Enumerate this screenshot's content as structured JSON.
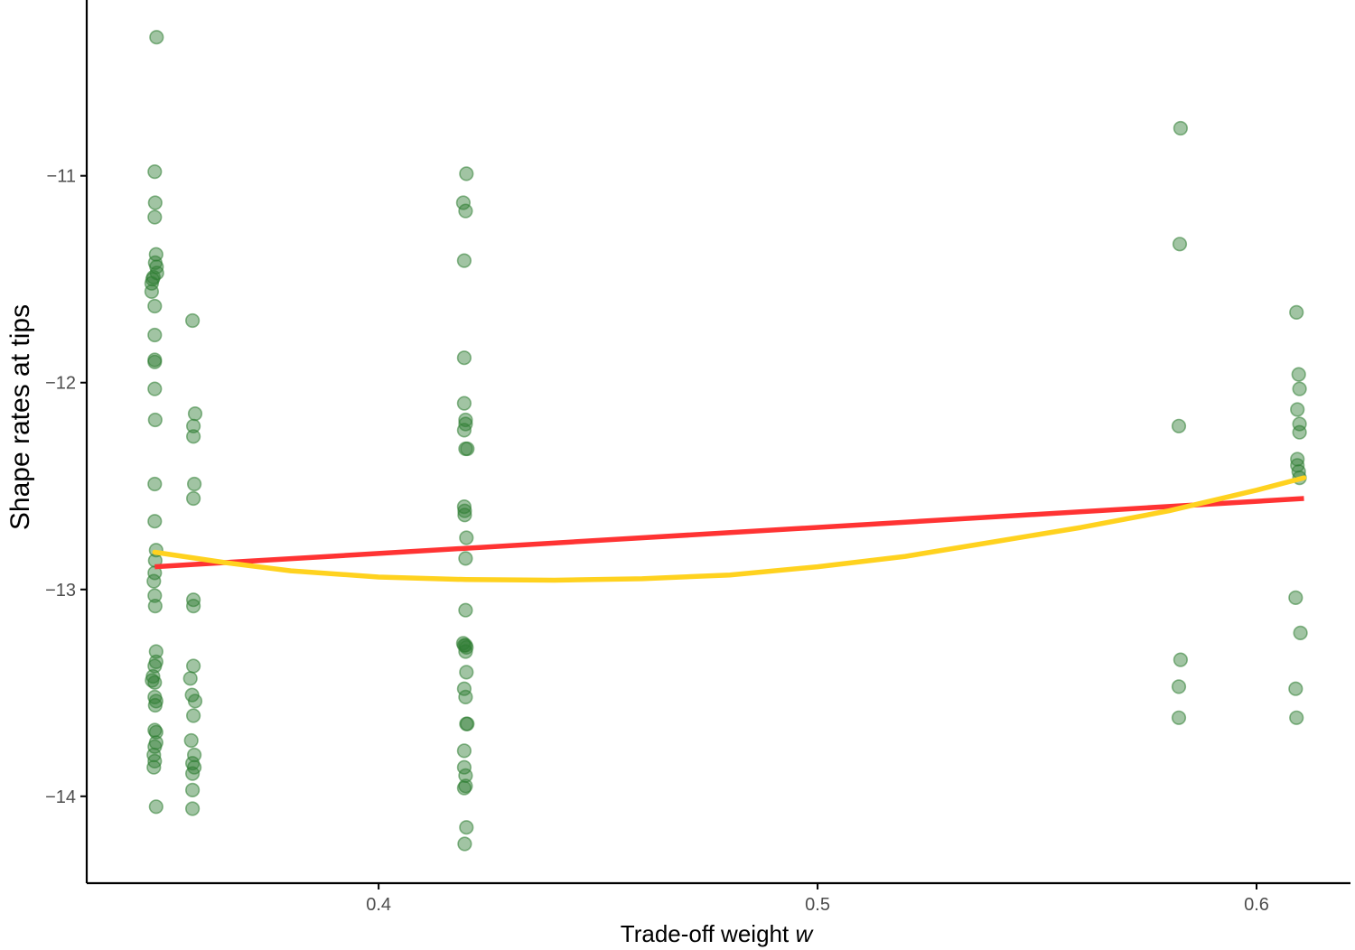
{
  "chart_data": {
    "type": "scatter",
    "title": "",
    "xlabel_main": "Trade-off weight ",
    "xlabel_var": "w",
    "ylabel": "Shape rates at tips",
    "xlim": [
      0.3335,
      0.6214
    ],
    "ylim": [
      -14.42,
      -10.15
    ],
    "x_ticks": [
      0.4,
      0.5,
      0.6
    ],
    "x_tick_labels": [
      "0.4",
      "0.5",
      "0.6"
    ],
    "y_ticks": [
      -11,
      -12,
      -13,
      -14
    ],
    "y_tick_labels": [
      "−11",
      "−12",
      "−13",
      "−14"
    ],
    "grid": false,
    "legend": "none",
    "colors": {
      "points": "#2e7d32",
      "linear_fit": "#ff3333",
      "smooth_fit": "#ffd21f",
      "axis": "#000000",
      "tick_text": "#4d4d4d"
    },
    "points": [
      [
        0.3494,
        -10.33
      ],
      [
        0.349,
        -10.98
      ],
      [
        0.3491,
        -11.13
      ],
      [
        0.349,
        -11.2
      ],
      [
        0.3493,
        -11.38
      ],
      [
        0.3491,
        -11.42
      ],
      [
        0.3494,
        -11.44
      ],
      [
        0.3495,
        -11.47
      ],
      [
        0.3487,
        -11.49
      ],
      [
        0.3485,
        -11.5
      ],
      [
        0.3483,
        -11.52
      ],
      [
        0.3483,
        -11.56
      ],
      [
        0.349,
        -11.63
      ],
      [
        0.349,
        -11.77
      ],
      [
        0.349,
        -11.89
      ],
      [
        0.349,
        -11.9
      ],
      [
        0.349,
        -12.03
      ],
      [
        0.3491,
        -12.18
      ],
      [
        0.349,
        -12.49
      ],
      [
        0.349,
        -12.67
      ],
      [
        0.3493,
        -12.81
      ],
      [
        0.3491,
        -12.86
      ],
      [
        0.349,
        -12.92
      ],
      [
        0.3488,
        -12.96
      ],
      [
        0.349,
        -13.03
      ],
      [
        0.3491,
        -13.08
      ],
      [
        0.3493,
        -13.3
      ],
      [
        0.3493,
        -13.35
      ],
      [
        0.349,
        -13.37
      ],
      [
        0.3486,
        -13.42
      ],
      [
        0.3484,
        -13.44
      ],
      [
        0.349,
        -13.45
      ],
      [
        0.349,
        -13.52
      ],
      [
        0.3493,
        -13.54
      ],
      [
        0.3491,
        -13.56
      ],
      [
        0.349,
        -13.68
      ],
      [
        0.3493,
        -13.69
      ],
      [
        0.3493,
        -13.74
      ],
      [
        0.349,
        -13.76
      ],
      [
        0.3488,
        -13.8
      ],
      [
        0.349,
        -13.83
      ],
      [
        0.3488,
        -13.86
      ],
      [
        0.3493,
        -14.05
      ],
      [
        0.3576,
        -11.7
      ],
      [
        0.3582,
        -12.15
      ],
      [
        0.3578,
        -12.21
      ],
      [
        0.3578,
        -12.26
      ],
      [
        0.358,
        -12.49
      ],
      [
        0.3578,
        -12.56
      ],
      [
        0.3578,
        -13.05
      ],
      [
        0.3578,
        -13.08
      ],
      [
        0.3578,
        -13.37
      ],
      [
        0.3571,
        -13.43
      ],
      [
        0.3575,
        -13.51
      ],
      [
        0.3582,
        -13.54
      ],
      [
        0.3578,
        -13.61
      ],
      [
        0.3573,
        -13.73
      ],
      [
        0.358,
        -13.8
      ],
      [
        0.3576,
        -13.84
      ],
      [
        0.358,
        -13.86
      ],
      [
        0.3576,
        -13.89
      ],
      [
        0.3576,
        -13.97
      ],
      [
        0.3576,
        -14.06
      ],
      [
        0.42,
        -10.99
      ],
      [
        0.4193,
        -11.13
      ],
      [
        0.4198,
        -11.17
      ],
      [
        0.4195,
        -11.41
      ],
      [
        0.4195,
        -11.88
      ],
      [
        0.4195,
        -12.1
      ],
      [
        0.4198,
        -12.18
      ],
      [
        0.4198,
        -12.2
      ],
      [
        0.4195,
        -12.23
      ],
      [
        0.4198,
        -12.32
      ],
      [
        0.4202,
        -12.32
      ],
      [
        0.4195,
        -12.6
      ],
      [
        0.4196,
        -12.62
      ],
      [
        0.4196,
        -12.64
      ],
      [
        0.42,
        -12.75
      ],
      [
        0.4198,
        -12.85
      ],
      [
        0.4198,
        -13.1
      ],
      [
        0.4193,
        -13.26
      ],
      [
        0.4195,
        -13.27
      ],
      [
        0.4198,
        -13.27
      ],
      [
        0.42,
        -13.28
      ],
      [
        0.4198,
        -13.3
      ],
      [
        0.42,
        -13.4
      ],
      [
        0.4195,
        -13.48
      ],
      [
        0.4198,
        -13.52
      ],
      [
        0.4202,
        -13.65
      ],
      [
        0.42,
        -13.65
      ],
      [
        0.4195,
        -13.78
      ],
      [
        0.4195,
        -13.86
      ],
      [
        0.4198,
        -13.9
      ],
      [
        0.4198,
        -13.95
      ],
      [
        0.4195,
        -13.96
      ],
      [
        0.42,
        -14.15
      ],
      [
        0.4196,
        -14.23
      ],
      [
        0.5827,
        -10.77
      ],
      [
        0.5825,
        -11.33
      ],
      [
        0.5823,
        -12.21
      ],
      [
        0.5827,
        -13.34
      ],
      [
        0.5823,
        -13.47
      ],
      [
        0.5823,
        -13.62
      ],
      [
        0.6091,
        -11.66
      ],
      [
        0.6096,
        -11.96
      ],
      [
        0.6098,
        -12.03
      ],
      [
        0.6093,
        -12.13
      ],
      [
        0.6098,
        -12.2
      ],
      [
        0.6098,
        -12.24
      ],
      [
        0.6093,
        -12.37
      ],
      [
        0.6093,
        -12.4
      ],
      [
        0.6096,
        -12.43
      ],
      [
        0.6098,
        -12.46
      ],
      [
        0.6089,
        -13.04
      ],
      [
        0.61,
        -13.21
      ],
      [
        0.6089,
        -13.48
      ],
      [
        0.6091,
        -13.62
      ]
    ],
    "linear_fit": [
      [
        0.349,
        -12.89
      ],
      [
        0.6108,
        -12.56
      ]
    ],
    "smooth_fit": [
      [
        0.349,
        -12.82
      ],
      [
        0.365,
        -12.87
      ],
      [
        0.38,
        -12.91
      ],
      [
        0.4,
        -12.94
      ],
      [
        0.42,
        -12.952
      ],
      [
        0.44,
        -12.955
      ],
      [
        0.46,
        -12.948
      ],
      [
        0.48,
        -12.93
      ],
      [
        0.5,
        -12.89
      ],
      [
        0.52,
        -12.84
      ],
      [
        0.54,
        -12.77
      ],
      [
        0.56,
        -12.7
      ],
      [
        0.58,
        -12.62
      ],
      [
        0.6,
        -12.52
      ],
      [
        0.6108,
        -12.46
      ]
    ]
  }
}
